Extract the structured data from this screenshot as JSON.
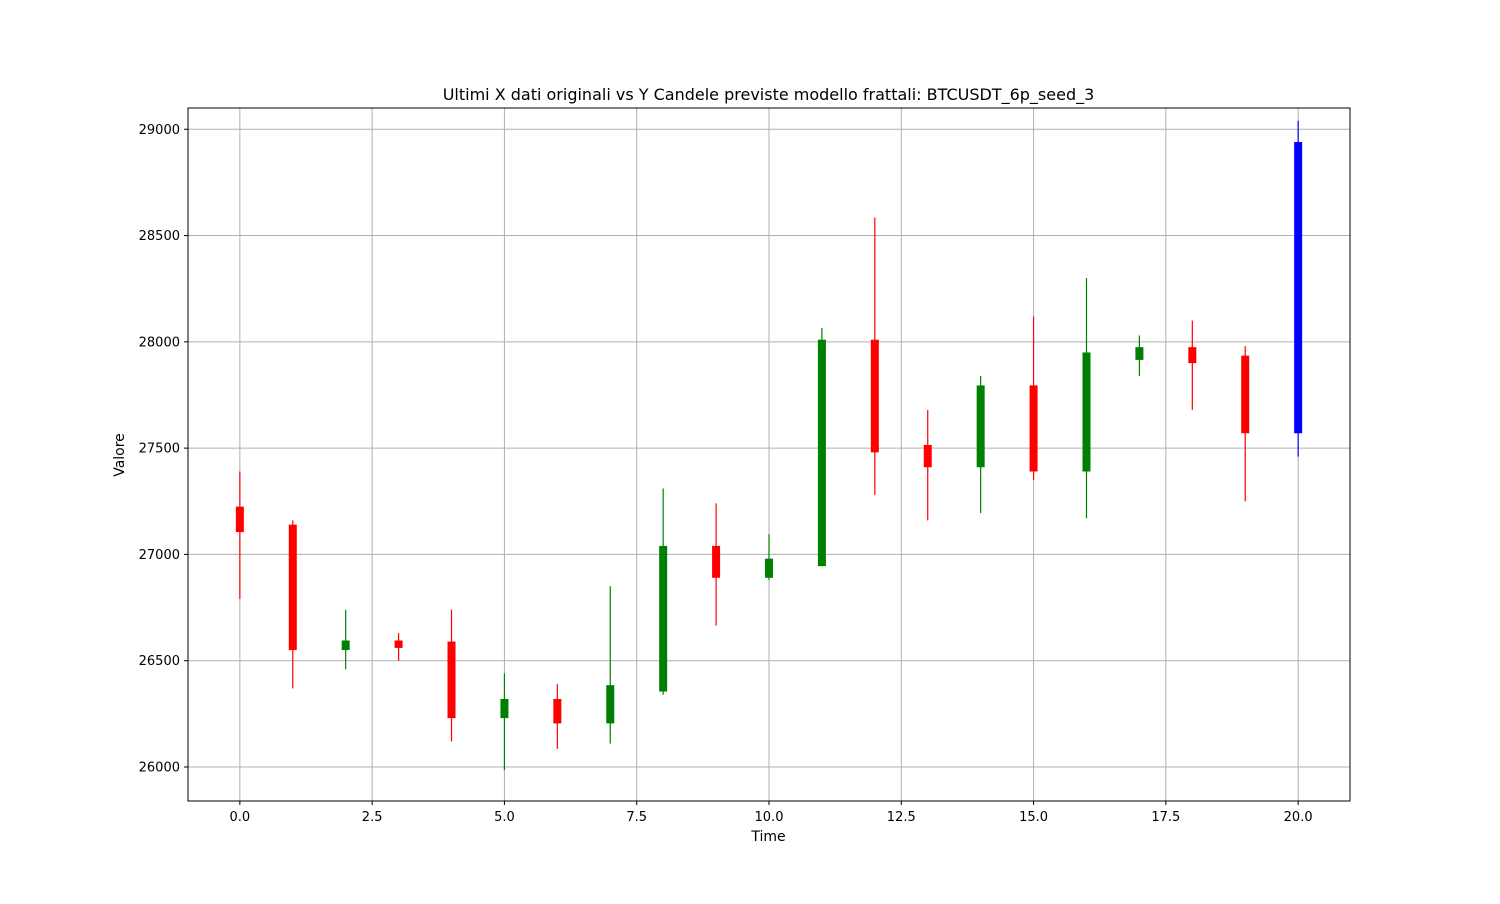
{
  "chart_data": {
    "type": "candlestick",
    "title": "Ultimi X dati originali vs Y Candele previste modello frattali: BTCUSDT_6p_seed_3",
    "xlabel": "Time",
    "ylabel": "Valore",
    "xlim": [
      -0.98,
      20.98
    ],
    "ylim": [
      25840,
      29100
    ],
    "x_ticks": [
      0.0,
      2.5,
      5.0,
      7.5,
      10.0,
      12.5,
      15.0,
      17.5,
      20.0
    ],
    "x_tick_labels": [
      "0.0",
      "2.5",
      "5.0",
      "7.5",
      "10.0",
      "12.5",
      "15.0",
      "17.5",
      "20.0"
    ],
    "y_ticks": [
      26000,
      26500,
      27000,
      27500,
      28000,
      28500,
      29000
    ],
    "y_tick_labels": [
      "26000",
      "26500",
      "27000",
      "27500",
      "28000",
      "28500",
      "29000"
    ],
    "grid": true,
    "colors": {
      "up": "#008000",
      "down": "#ff0000",
      "predicted": "#0000ff"
    },
    "candles": [
      {
        "x": 0,
        "open": 27225,
        "high": 27390,
        "low": 26790,
        "close": 27105,
        "kind": "down"
      },
      {
        "x": 1,
        "open": 27140,
        "high": 27160,
        "low": 26370,
        "close": 26550,
        "kind": "down"
      },
      {
        "x": 2,
        "open": 26550,
        "high": 26740,
        "low": 26460,
        "close": 26595,
        "kind": "up"
      },
      {
        "x": 3,
        "open": 26595,
        "high": 26630,
        "low": 26500,
        "close": 26560,
        "kind": "down"
      },
      {
        "x": 4,
        "open": 26590,
        "high": 26740,
        "low": 26120,
        "close": 26230,
        "kind": "down"
      },
      {
        "x": 5,
        "open": 26230,
        "high": 26440,
        "low": 25985,
        "close": 26320,
        "kind": "up"
      },
      {
        "x": 6,
        "open": 26320,
        "high": 26390,
        "low": 26085,
        "close": 26205,
        "kind": "down"
      },
      {
        "x": 7,
        "open": 26205,
        "high": 26850,
        "low": 26110,
        "close": 26385,
        "kind": "up"
      },
      {
        "x": 8,
        "open": 26355,
        "high": 27310,
        "low": 26340,
        "close": 27040,
        "kind": "up"
      },
      {
        "x": 9,
        "open": 27040,
        "high": 27240,
        "low": 26665,
        "close": 26890,
        "kind": "down"
      },
      {
        "x": 10,
        "open": 26890,
        "high": 27095,
        "low": 26880,
        "close": 26980,
        "kind": "up"
      },
      {
        "x": 11,
        "open": 26945,
        "high": 28065,
        "low": 26945,
        "close": 28010,
        "kind": "up"
      },
      {
        "x": 12,
        "open": 28010,
        "high": 28585,
        "low": 27280,
        "close": 27480,
        "kind": "down"
      },
      {
        "x": 13,
        "open": 27515,
        "high": 27680,
        "low": 27160,
        "close": 27410,
        "kind": "down"
      },
      {
        "x": 14,
        "open": 27410,
        "high": 27840,
        "low": 27195,
        "close": 27795,
        "kind": "up"
      },
      {
        "x": 15,
        "open": 27795,
        "high": 28120,
        "low": 27350,
        "close": 27390,
        "kind": "down"
      },
      {
        "x": 16,
        "open": 27390,
        "high": 28300,
        "low": 27170,
        "close": 27950,
        "kind": "up"
      },
      {
        "x": 17,
        "open": 27915,
        "high": 28030,
        "low": 27840,
        "close": 27975,
        "kind": "up"
      },
      {
        "x": 18,
        "open": 27975,
        "high": 28100,
        "low": 27680,
        "close": 27900,
        "kind": "down"
      },
      {
        "x": 19,
        "open": 27935,
        "high": 27980,
        "low": 27250,
        "close": 27570,
        "kind": "down"
      },
      {
        "x": 20,
        "open": 27570,
        "high": 29040,
        "low": 27460,
        "close": 28940,
        "kind": "predicted"
      }
    ]
  }
}
